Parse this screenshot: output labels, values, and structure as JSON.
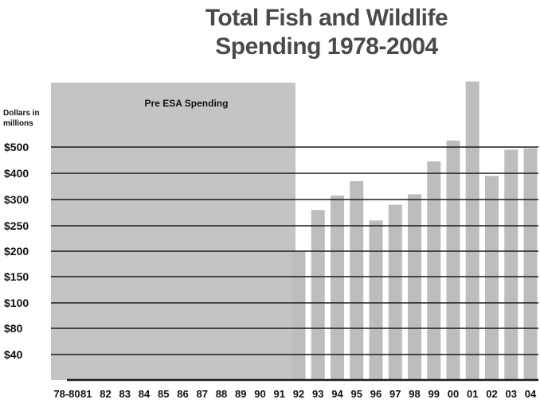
{
  "chart_data": {
    "type": "bar",
    "title_lines": [
      "Total Fish and Wildlife",
      "Spending 1978-2004"
    ],
    "ylabel_lines": [
      "Dollars in",
      "millions"
    ],
    "y_ticks": [
      "$40",
      "$80",
      "$100",
      "$150",
      "$200",
      "$250",
      "$300",
      "$400",
      "$500"
    ],
    "categories": [
      "78-80",
      "81",
      "82",
      "83",
      "84",
      "85",
      "86",
      "87",
      "88",
      "89",
      "90",
      "91",
      "92",
      "93",
      "94",
      "95",
      "96",
      "97",
      "98",
      "99",
      "00",
      "01",
      "02",
      "03",
      "04"
    ],
    "values": [
      null,
      null,
      null,
      null,
      null,
      null,
      null,
      null,
      null,
      null,
      null,
      null,
      200,
      280,
      315,
      370,
      260,
      290,
      320,
      445,
      525,
      750,
      390,
      490,
      495
    ],
    "annotation": "Pre ESA Spending",
    "grid": true,
    "colors": {
      "bar": "#bdbdbd",
      "shade": "#c4c4c4",
      "grid": "#1a1a1a",
      "text": "#111111",
      "title": "#4a4a4a"
    }
  }
}
